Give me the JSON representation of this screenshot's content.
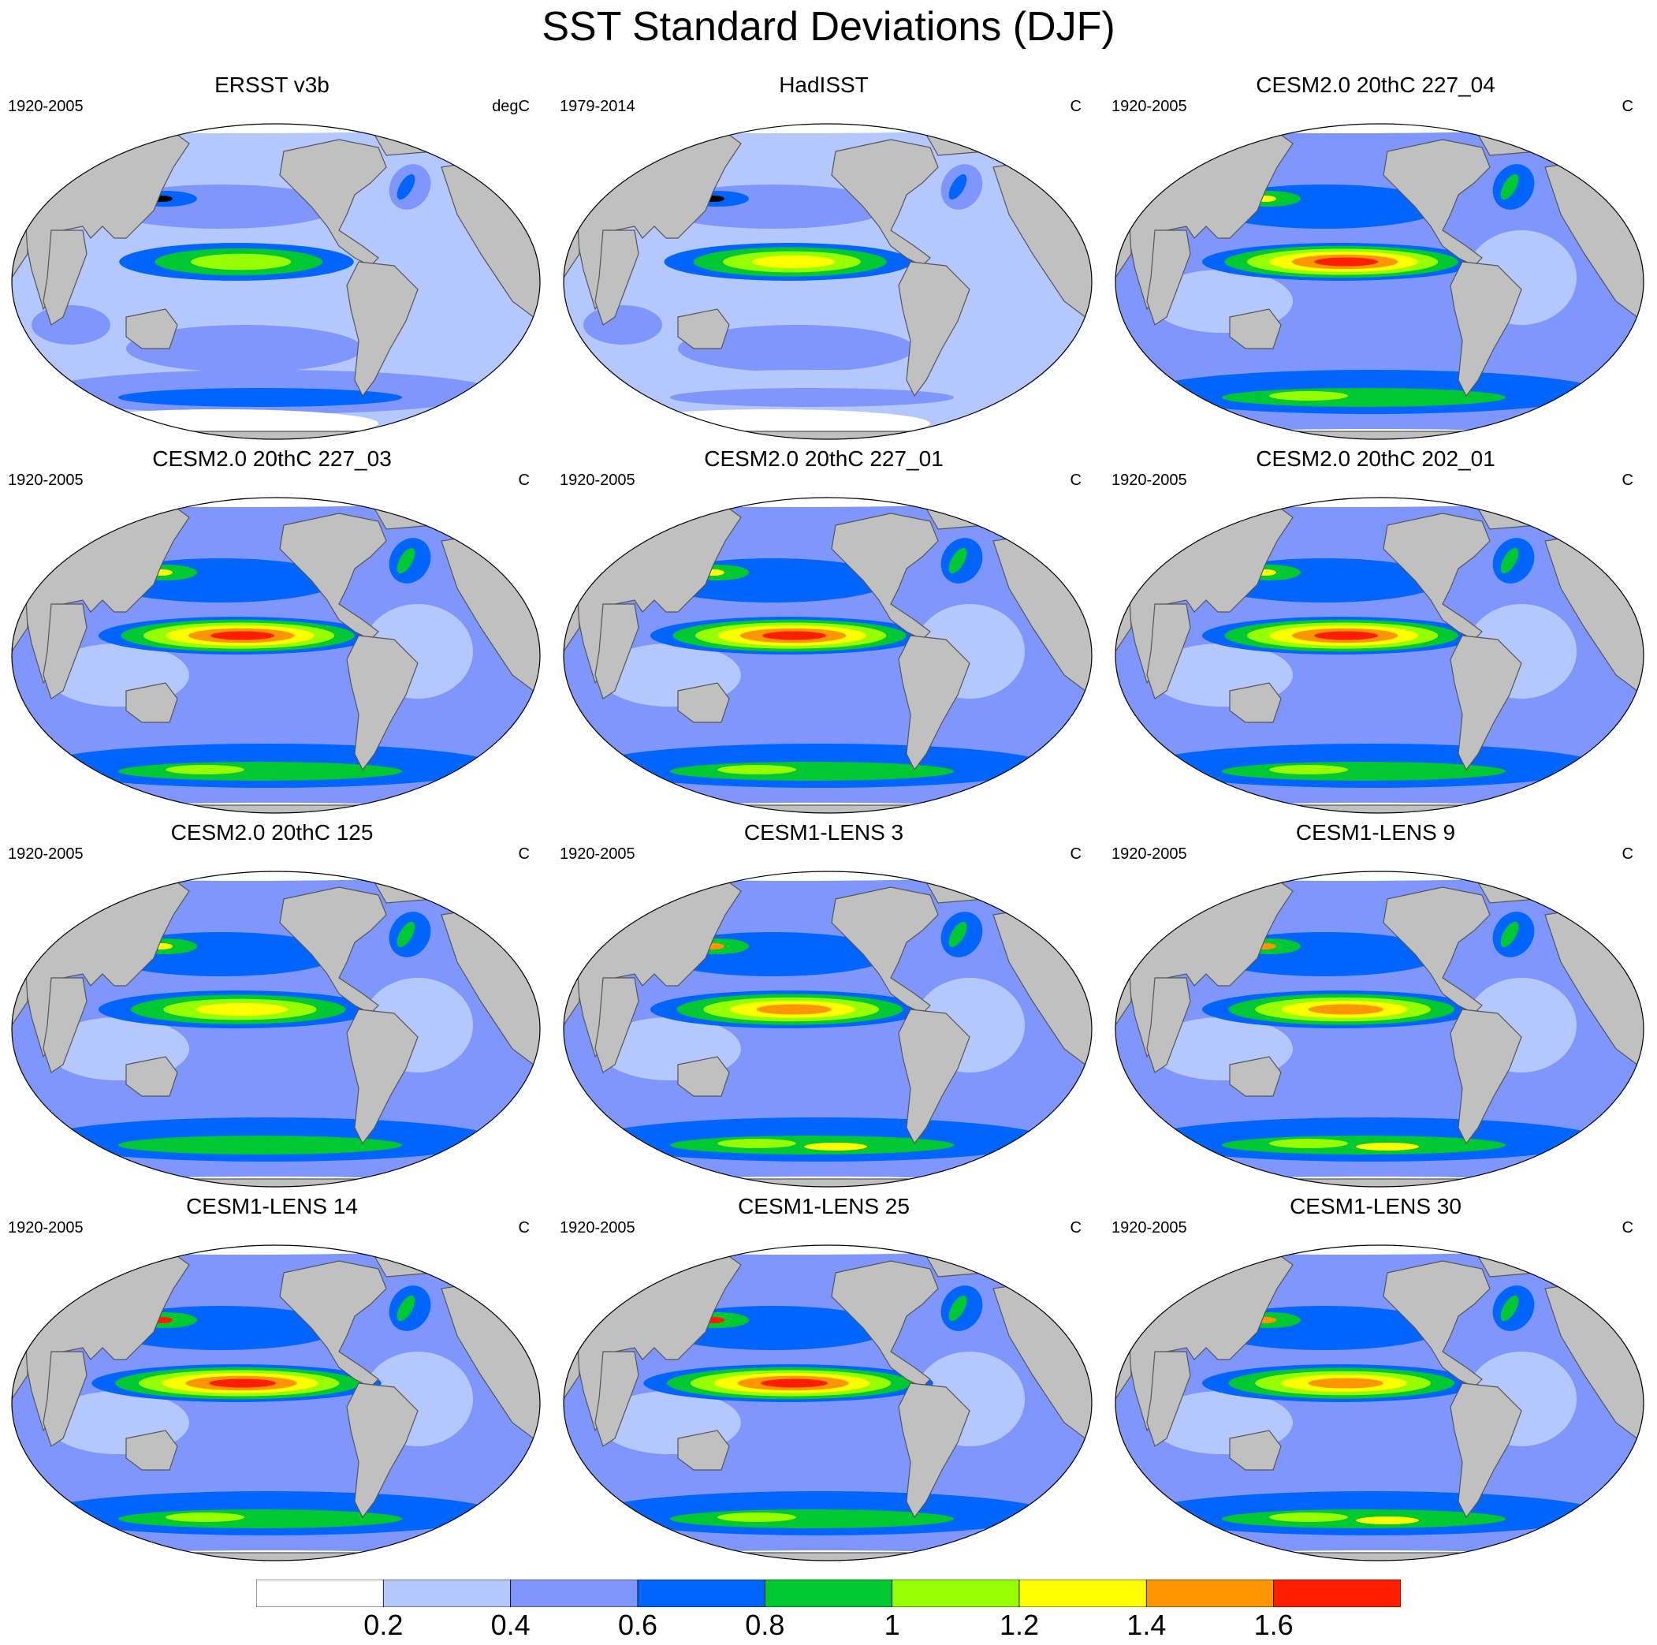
{
  "title": "SST Standard Deviations (DJF)",
  "panels": [
    {
      "title": "ERSST v3b",
      "period": "1920-2005",
      "unit": "degC",
      "variant": "obs1"
    },
    {
      "title": "HadISST",
      "period": "1979-2014",
      "unit": "C",
      "variant": "obs2"
    },
    {
      "title": "CESM2.0 20thC 227_04",
      "period": "1920-2005",
      "unit": "C",
      "variant": "cesm2strong"
    },
    {
      "title": "CESM2.0 20thC 227_03",
      "period": "1920-2005",
      "unit": "C",
      "variant": "cesm2strong"
    },
    {
      "title": "CESM2.0 20thC 227_01",
      "period": "1920-2005",
      "unit": "C",
      "variant": "cesm2strong"
    },
    {
      "title": "CESM2.0 20thC 202_01",
      "period": "1920-2005",
      "unit": "C",
      "variant": "cesm2strong"
    },
    {
      "title": "CESM2.0 20thC 125",
      "period": "1920-2005",
      "unit": "C",
      "variant": "cesm2weak"
    },
    {
      "title": "CESM1-LENS 3",
      "period": "1920-2005",
      "unit": "C",
      "variant": "lens"
    },
    {
      "title": "CESM1-LENS 9",
      "period": "1920-2005",
      "unit": "C",
      "variant": "lens"
    },
    {
      "title": "CESM1-LENS 14",
      "period": "1920-2005",
      "unit": "C",
      "variant": "lensstrong"
    },
    {
      "title": "CESM1-LENS 25",
      "period": "1920-2005",
      "unit": "C",
      "variant": "lensstrong"
    },
    {
      "title": "CESM1-LENS 30",
      "period": "1920-2005",
      "unit": "C",
      "variant": "lens"
    }
  ],
  "colorbar": {
    "colors": [
      "#ffffff",
      "#b4c8ff",
      "#8096ff",
      "#0064ff",
      "#00c832",
      "#96ff00",
      "#ffff00",
      "#ff9600",
      "#ff1e00"
    ],
    "labels": [
      "0.2",
      "0.4",
      "0.6",
      "0.8",
      "1",
      "1.2",
      "1.4",
      "1.6"
    ]
  },
  "colors": {
    "land": "#c0c0c0",
    "coast": "#555555"
  }
}
